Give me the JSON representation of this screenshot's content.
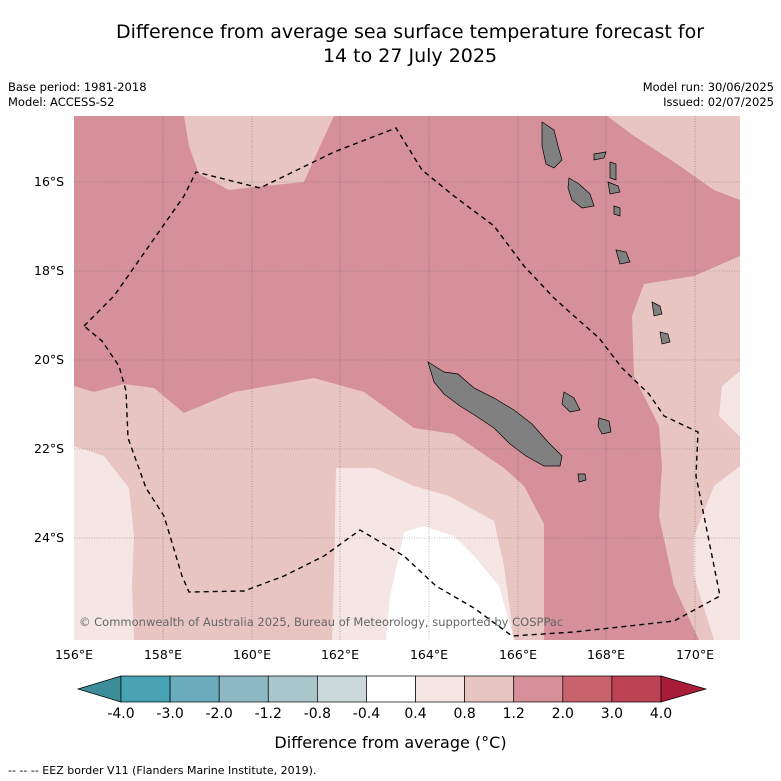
{
  "title_line1": "Difference from average sea surface temperature forecast for",
  "title_line2": "14 to 27 July 2025",
  "base_period": "Base period: 1981-2018",
  "model": "Model: ACCESS-S2",
  "model_run": "Model run: 30/06/2025",
  "issued": "Issued: 02/07/2025",
  "lat_ticks": [
    "16°S",
    "18°S",
    "20°S",
    "22°S",
    "24°S"
  ],
  "lon_ticks": [
    "156°E",
    "158°E",
    "160°E",
    "162°E",
    "164°E",
    "166°E",
    "168°E",
    "170°E"
  ],
  "copyright": "© Commonwealth of Australia 2025, Bureau of Meteorology, supported by COSPPac",
  "colorbar": {
    "labels": [
      "-4.0",
      "-3.0",
      "-2.0",
      "-1.2",
      "-0.8",
      "-0.4",
      "0.4",
      "0.8",
      "1.2",
      "2.0",
      "3.0",
      "4.0"
    ],
    "colors": [
      "#3d8d9a",
      "#47a2b2",
      "#6aacbb",
      "#8db8c3",
      "#a9c6cb",
      "#cbd9db",
      "#ffffff",
      "#f5e6e5",
      "#e8c5c1",
      "#d5909a",
      "#c8636e",
      "#bd4254",
      "#a81c3a"
    ],
    "title": "Difference from average (°C)"
  },
  "legend_text": "-- -- -- EEZ border V11 (Flanders Marine Institute, 2019)."
}
